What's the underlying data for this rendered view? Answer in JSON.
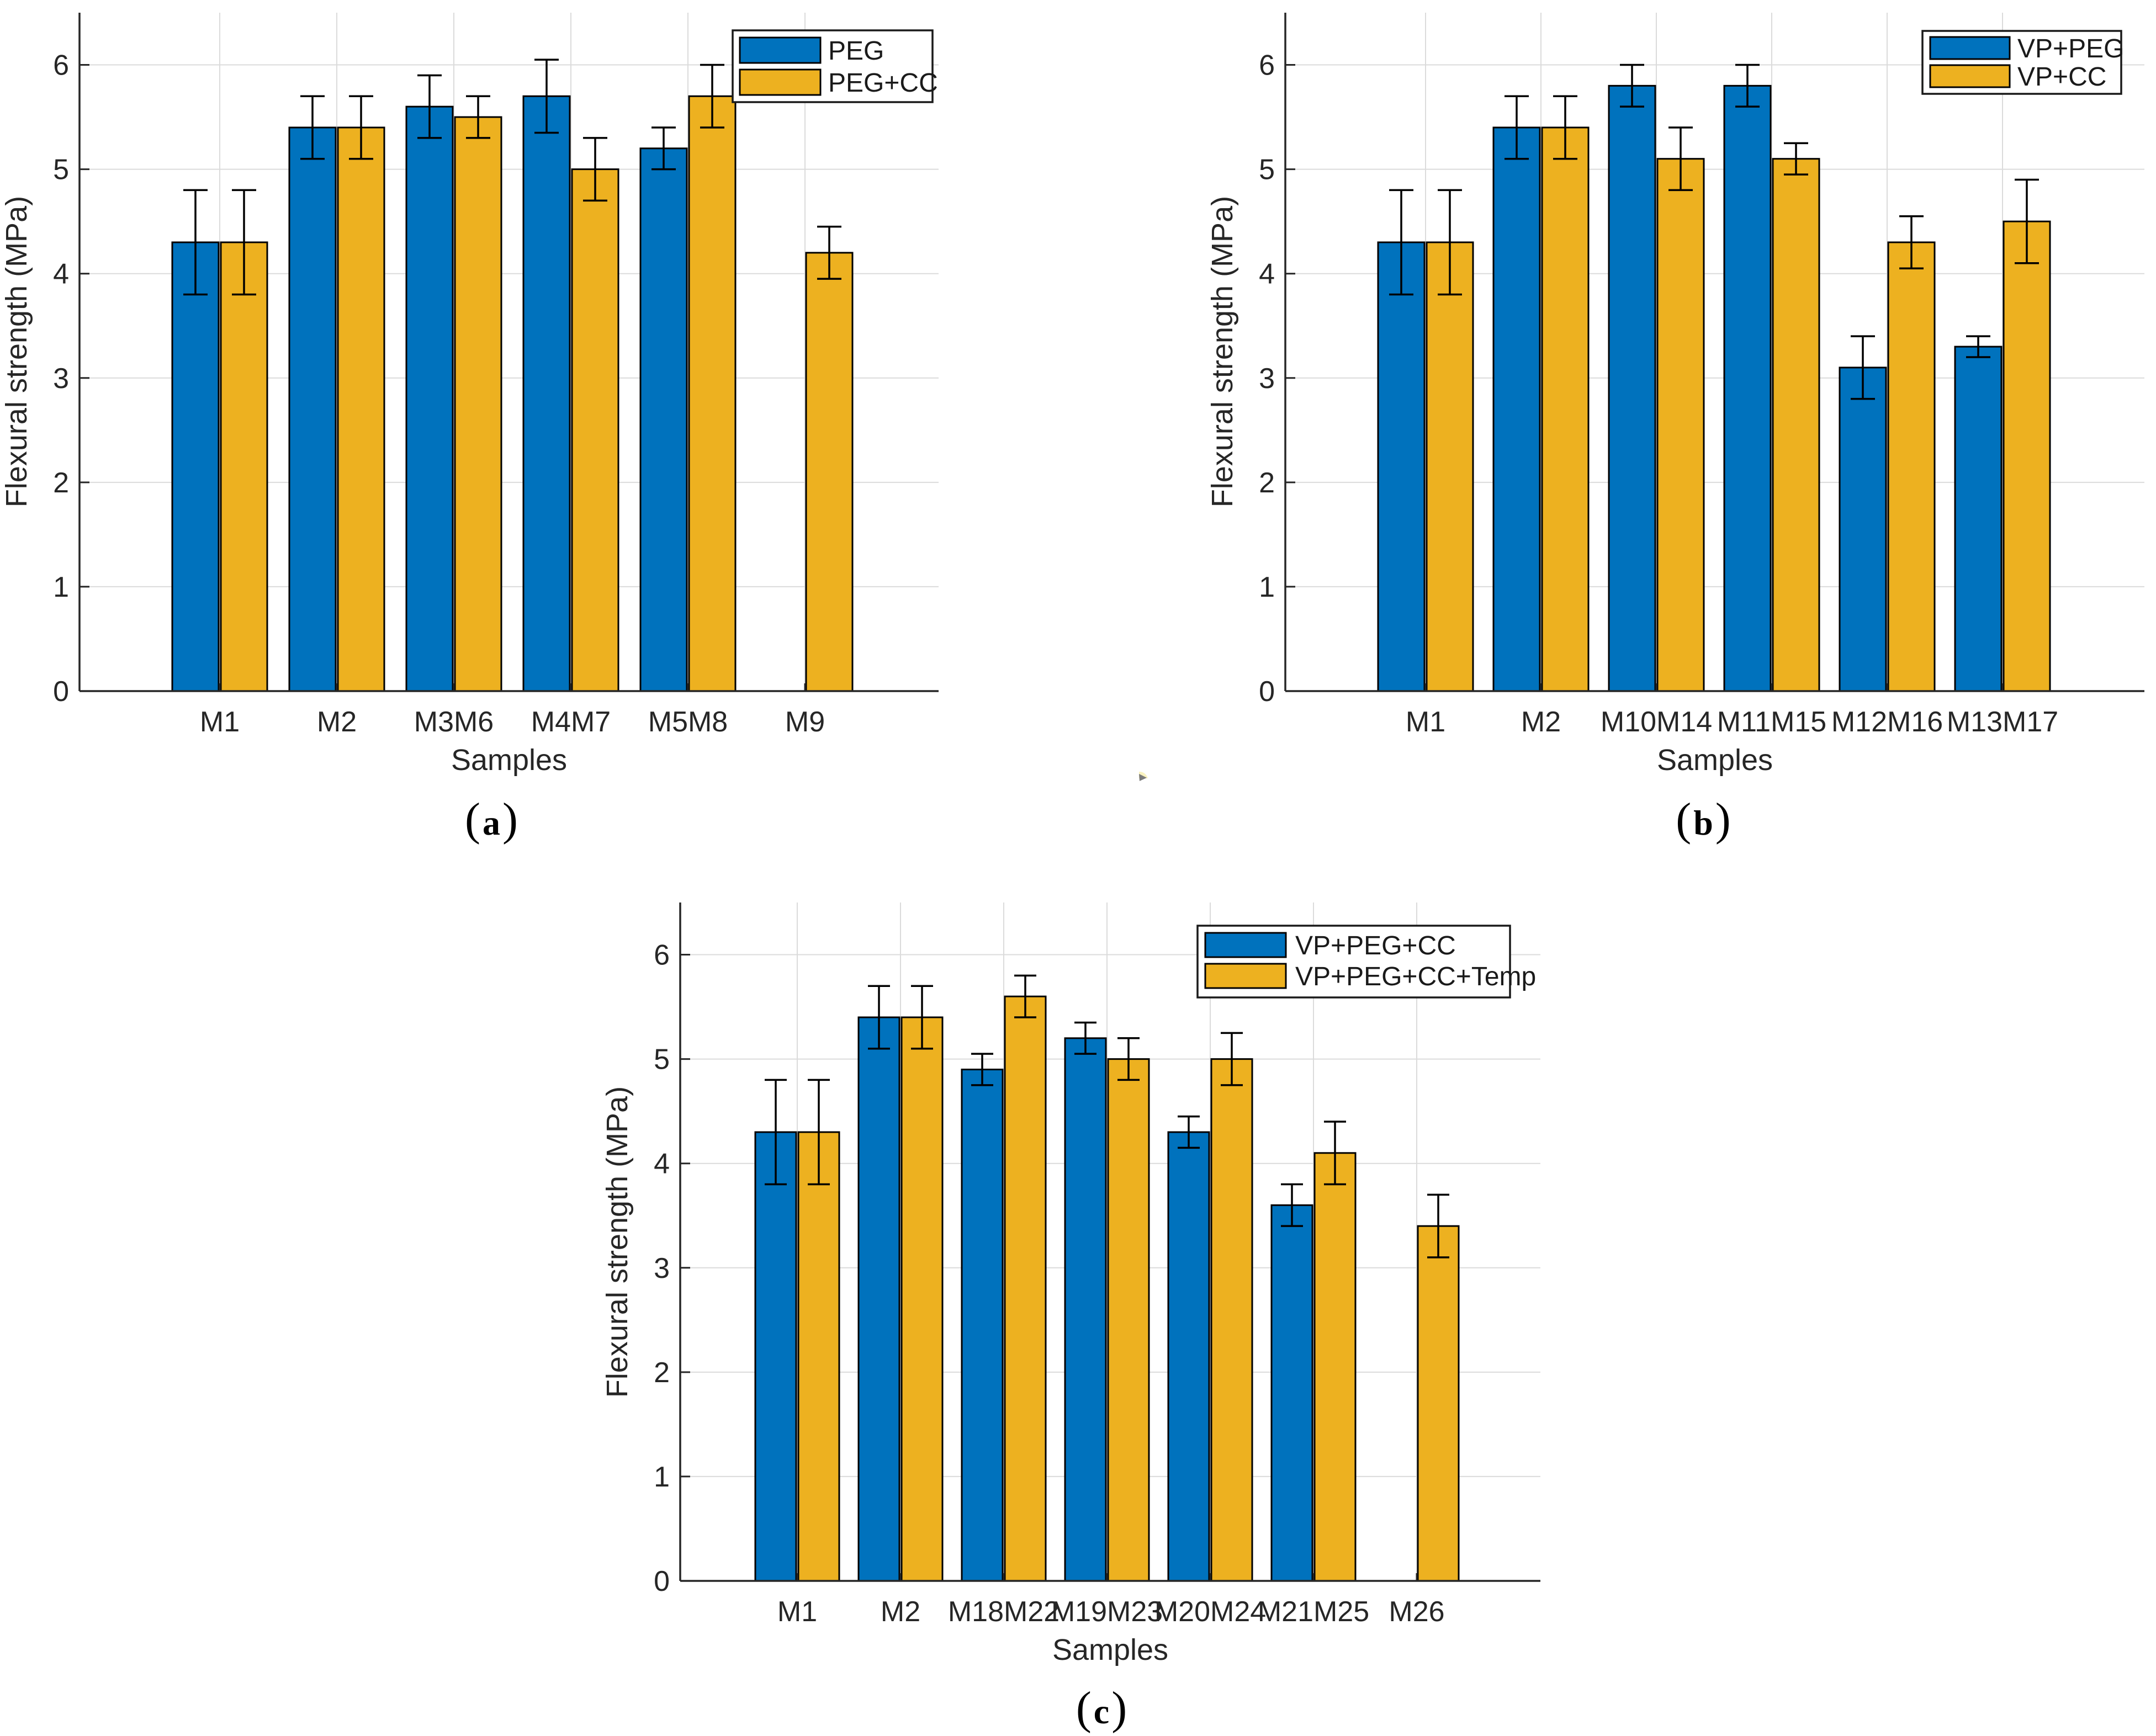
{
  "figure": {
    "background": "#ffffff",
    "axis_color": "#262626",
    "grid_color": "#dbdbdb",
    "bar_edge_color": "#000000",
    "error_bar_color": "#000000",
    "series_colors": {
      "blue": "#0072BD",
      "yellow": "#EDB120"
    },
    "ytick_labels": [
      "0",
      "1",
      "2",
      "3",
      "4",
      "5",
      "6"
    ]
  },
  "chart_data": [
    {
      "id": "a",
      "type": "bar",
      "caption": {
        "open": "(",
        "letter": "a",
        "close": ")"
      },
      "xlabel": "Samples",
      "ylabel": "Flexural strength (MPa)",
      "ylim": [
        0,
        6.5
      ],
      "yticks": [
        0,
        1,
        2,
        3,
        4,
        5,
        6
      ],
      "grid": true,
      "legend_position": "top-right",
      "categories": [
        "M1",
        "M2",
        "M3M6",
        "M4M7",
        "M5M8",
        "M9"
      ],
      "series": [
        {
          "name": "PEG",
          "color": "#0072BD",
          "values": [
            4.3,
            5.4,
            5.6,
            5.7,
            5.2,
            null
          ],
          "errors": [
            0.5,
            0.3,
            0.3,
            0.35,
            0.2,
            null
          ]
        },
        {
          "name": "PEG+CC",
          "color": "#EDB120",
          "values": [
            4.3,
            5.4,
            5.5,
            5.0,
            5.7,
            4.2
          ],
          "errors": [
            0.5,
            0.3,
            0.2,
            0.3,
            0.3,
            0.25
          ]
        }
      ]
    },
    {
      "id": "b",
      "type": "bar",
      "caption": {
        "open": "(",
        "letter": "b",
        "close": ")"
      },
      "xlabel": "Samples",
      "ylabel": "Flexural strength (MPa)",
      "ylim": [
        0,
        6.5
      ],
      "yticks": [
        0,
        1,
        2,
        3,
        4,
        5,
        6
      ],
      "grid": true,
      "legend_position": "top-right",
      "categories": [
        "M1",
        "M2",
        "M10M14",
        "M11M15",
        "M12M16",
        "M13M17"
      ],
      "series": [
        {
          "name": "VP+PEG",
          "color": "#0072BD",
          "values": [
            4.3,
            5.4,
            5.8,
            5.8,
            3.1,
            3.3
          ],
          "errors": [
            0.5,
            0.3,
            0.2,
            0.2,
            0.3,
            0.1
          ]
        },
        {
          "name": "VP+CC",
          "color": "#EDB120",
          "values": [
            4.3,
            5.4,
            5.1,
            5.1,
            4.3,
            4.5
          ],
          "errors": [
            0.5,
            0.3,
            0.3,
            0.15,
            0.25,
            0.4
          ]
        }
      ]
    },
    {
      "id": "c",
      "type": "bar",
      "caption": {
        "open": "(",
        "letter": "c",
        "close": ")"
      },
      "xlabel": "Samples",
      "ylabel": "Flexural strength (MPa)",
      "ylim": [
        0,
        6.5
      ],
      "yticks": [
        0,
        1,
        2,
        3,
        4,
        5,
        6
      ],
      "grid": true,
      "legend_position": "top-right",
      "categories": [
        "M1",
        "M2",
        "M18M22",
        "M19M23",
        "M20M24",
        "M21M25",
        "M26"
      ],
      "series": [
        {
          "name": "VP+PEG+CC",
          "color": "#0072BD",
          "values": [
            4.3,
            5.4,
            4.9,
            5.2,
            4.3,
            3.6,
            null
          ],
          "errors": [
            0.5,
            0.3,
            0.15,
            0.15,
            0.15,
            0.2,
            null
          ]
        },
        {
          "name": "VP+PEG+CC+Temp",
          "color": "#EDB120",
          "values": [
            4.3,
            5.4,
            5.6,
            5.0,
            5.0,
            4.1,
            3.4
          ],
          "errors": [
            0.5,
            0.3,
            0.2,
            0.2,
            0.25,
            0.3,
            0.3
          ]
        }
      ]
    }
  ]
}
